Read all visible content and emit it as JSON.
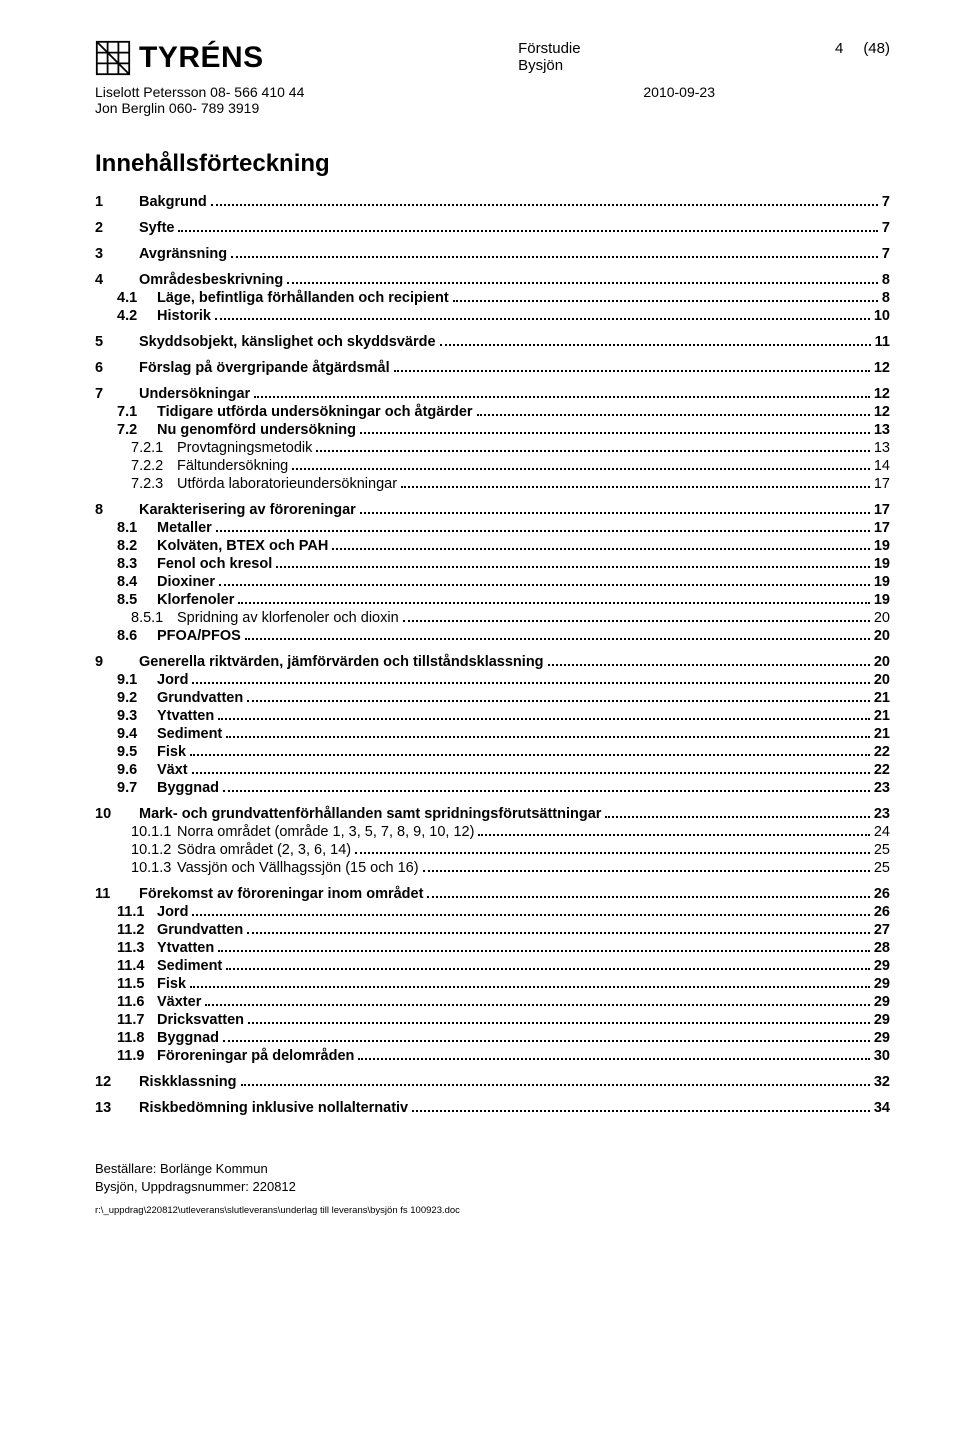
{
  "header": {
    "logo_text": "TYRÉNS",
    "doc_type": "Förstudie",
    "doc_subject": "Bysjön",
    "page_current": "4",
    "page_total": "(48)",
    "author1": "Liselott Petersson 08- 566 410 44",
    "author2": "Jon Berglin 060- 789 3919",
    "date": "2010-09-23"
  },
  "toc_title": "Innehållsförteckning",
  "toc": [
    {
      "lvl": 1,
      "num": "1",
      "label": "Bakgrund",
      "page": "7",
      "gap": true
    },
    {
      "lvl": 1,
      "num": "2",
      "label": "Syfte",
      "page": "7",
      "gap": true
    },
    {
      "lvl": 1,
      "num": "3",
      "label": "Avgränsning",
      "page": "7",
      "gap": true
    },
    {
      "lvl": 1,
      "num": "4",
      "label": "Områdesbeskrivning",
      "page": "8",
      "gap": true
    },
    {
      "lvl": 2,
      "num": "4.1",
      "label": "Läge, befintliga förhållanden och recipient",
      "page": "8"
    },
    {
      "lvl": 2,
      "num": "4.2",
      "label": "Historik",
      "page": "10"
    },
    {
      "lvl": 1,
      "num": "5",
      "label": "Skyddsobjekt, känslighet och skyddsvärde",
      "page": "11",
      "gap": true
    },
    {
      "lvl": 1,
      "num": "6",
      "label": "Förslag på övergripande åtgärdsmål",
      "page": "12",
      "gap": true
    },
    {
      "lvl": 1,
      "num": "7",
      "label": "Undersökningar",
      "page": "12",
      "gap": true
    },
    {
      "lvl": 2,
      "num": "7.1",
      "label": "Tidigare utförda undersökningar och åtgärder",
      "page": "12"
    },
    {
      "lvl": 2,
      "num": "7.2",
      "label": "Nu genomförd undersökning",
      "page": "13"
    },
    {
      "lvl": 3,
      "num": "7.2.1",
      "label": "Provtagningsmetodik",
      "page": "13"
    },
    {
      "lvl": 3,
      "num": "7.2.2",
      "label": "Fältundersökning",
      "page": "14"
    },
    {
      "lvl": 3,
      "num": "7.2.3",
      "label": "Utförda laboratorieundersökningar",
      "page": "17"
    },
    {
      "lvl": 1,
      "num": "8",
      "label": "Karakterisering av föroreningar",
      "page": "17",
      "gap": true
    },
    {
      "lvl": 2,
      "num": "8.1",
      "label": "Metaller",
      "page": "17"
    },
    {
      "lvl": 2,
      "num": "8.2",
      "label": "Kolväten, BTEX och PAH",
      "page": "19"
    },
    {
      "lvl": 2,
      "num": "8.3",
      "label": "Fenol och kresol",
      "page": "19"
    },
    {
      "lvl": 2,
      "num": "8.4",
      "label": "Dioxiner",
      "page": "19"
    },
    {
      "lvl": 2,
      "num": "8.5",
      "label": "Klorfenoler",
      "page": "19"
    },
    {
      "lvl": 3,
      "num": "8.5.1",
      "label": "Spridning av klorfenoler och dioxin",
      "page": "20"
    },
    {
      "lvl": 2,
      "num": "8.6",
      "label": "PFOA/PFOS",
      "page": "20"
    },
    {
      "lvl": 1,
      "num": "9",
      "label": "Generella riktvärden, jämförvärden och tillståndsklassning",
      "page": "20",
      "gap": true
    },
    {
      "lvl": 2,
      "num": "9.1",
      "label": "Jord",
      "page": "20"
    },
    {
      "lvl": 2,
      "num": "9.2",
      "label": "Grundvatten",
      "page": "21"
    },
    {
      "lvl": 2,
      "num": "9.3",
      "label": "Ytvatten",
      "page": "21"
    },
    {
      "lvl": 2,
      "num": "9.4",
      "label": "Sediment",
      "page": "21"
    },
    {
      "lvl": 2,
      "num": "9.5",
      "label": "Fisk",
      "page": "22"
    },
    {
      "lvl": 2,
      "num": "9.6",
      "label": "Växt",
      "page": "22"
    },
    {
      "lvl": 2,
      "num": "9.7",
      "label": "Byggnad",
      "page": "23"
    },
    {
      "lvl": 1,
      "num": "10",
      "label": "Mark- och grundvattenförhållanden samt spridningsförutsättningar",
      "page": "23",
      "gap": true
    },
    {
      "lvl": 3,
      "num": "10.1.1",
      "label": "Norra området (område 1, 3, 5, 7, 8, 9, 10, 12)",
      "page": "24"
    },
    {
      "lvl": 3,
      "num": "10.1.2",
      "label": "Södra området (2, 3, 6, 14)",
      "page": "25"
    },
    {
      "lvl": 3,
      "num": "10.1.3",
      "label": "Vassjön och Vällhagssjön (15 och 16)",
      "page": "25"
    },
    {
      "lvl": 1,
      "num": "11",
      "label": "Förekomst av föroreningar inom området",
      "page": "26",
      "gap": true
    },
    {
      "lvl": 2,
      "num": "11.1",
      "label": "Jord",
      "page": "26"
    },
    {
      "lvl": 2,
      "num": "11.2",
      "label": "Grundvatten",
      "page": "27"
    },
    {
      "lvl": 2,
      "num": "11.3",
      "label": "Ytvatten",
      "page": "28"
    },
    {
      "lvl": 2,
      "num": "11.4",
      "label": "Sediment",
      "page": "29"
    },
    {
      "lvl": 2,
      "num": "11.5",
      "label": "Fisk",
      "page": "29"
    },
    {
      "lvl": 2,
      "num": "11.6",
      "label": "Växter",
      "page": "29"
    },
    {
      "lvl": 2,
      "num": "11.7",
      "label": "Dricksvatten",
      "page": "29"
    },
    {
      "lvl": 2,
      "num": "11.8",
      "label": "Byggnad",
      "page": "29"
    },
    {
      "lvl": 2,
      "num": "11.9",
      "label": "Föroreningar på delområden",
      "page": "30"
    },
    {
      "lvl": 1,
      "num": "12",
      "label": "Riskklassning",
      "page": "32",
      "gap": true
    },
    {
      "lvl": 1,
      "num": "13",
      "label": "Riskbedömning inklusive nollalternativ",
      "page": "34",
      "gap": true
    }
  ],
  "footer": {
    "line1": "Beställare: Borlänge Kommun",
    "line2": "Bysjön, Uppdragsnummer: 220812",
    "path": "r:\\_uppdrag\\220812\\utleverans\\slutleverans\\underlag till leverans\\bysjön fs 100923.doc"
  }
}
